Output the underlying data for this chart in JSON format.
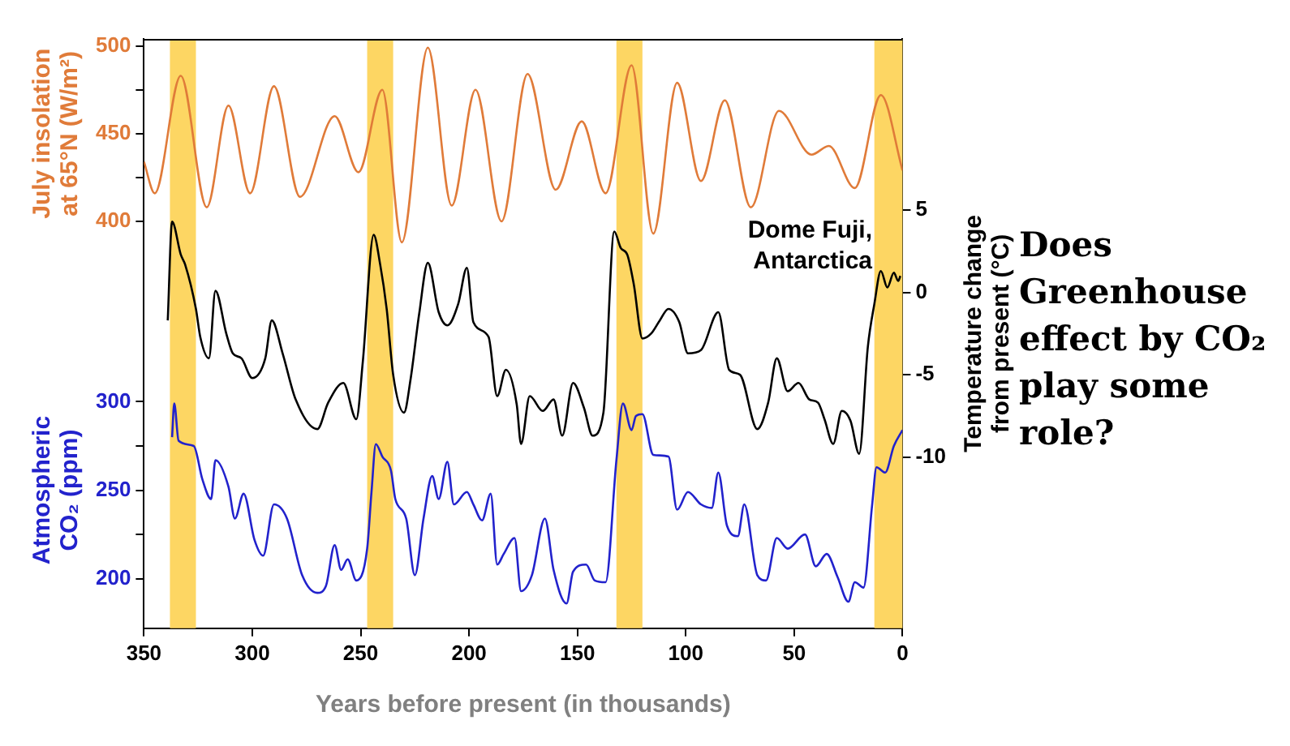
{
  "chart_data": {
    "type": "line",
    "xlabel": "Years before present (in thousands)",
    "ylabel": "July insolation at 65°N (W/m²)",
    "y2label": "Temperature change from present (°C)",
    "y3label": "Atmospheric CO₂ (ppm)",
    "xlim": [
      350,
      0
    ],
    "xticks": [
      350,
      300,
      250,
      200,
      150,
      100,
      50,
      0
    ],
    "ylim": [
      168,
      504
    ],
    "yticks": [
      400,
      {
        "value": 425,
        "label": null
      },
      450,
      {
        "value": 475,
        "label": null
      },
      500
    ],
    "y2lim": [
      -20.4,
      15.4
    ],
    "y2ticks": [
      -10,
      -5,
      0,
      5
    ],
    "y3lim": [
      172,
      505
    ],
    "y3ticks": [
      200,
      {
        "value": 225,
        "label": null
      },
      250,
      {
        "value": 275,
        "label": null
      },
      300
    ],
    "marker": "none",
    "bands": [
      {
        "axis": "x",
        "from": 338,
        "to": 326,
        "color": "#fdd663"
      },
      {
        "axis": "x",
        "from": 247,
        "to": 235,
        "color": "#fdd663"
      },
      {
        "axis": "x",
        "from": 132,
        "to": 120,
        "color": "#fdd663"
      },
      {
        "axis": "x",
        "from": 13,
        "to": 0,
        "color": "#fdd663"
      }
    ],
    "annotations": [
      "Does Greenhouse effect by CO₂ play some role?"
    ],
    "series": [
      {
        "color": "#e07b39",
        "axis": "y",
        "x": [
          350,
          345,
          333,
          321,
          311,
          301,
          290,
          278,
          262,
          251,
          240,
          231,
          219,
          208,
          197,
          185,
          173,
          160,
          148,
          137,
          125,
          115,
          104,
          93,
          82,
          70,
          57,
          42,
          34,
          22,
          10,
          0
        ],
        "values": [
          434,
          416,
          483,
          408,
          466,
          416,
          477,
          414,
          460,
          428,
          475,
          388,
          499,
          409,
          475,
          400,
          484,
          418,
          457,
          416,
          489,
          393,
          479,
          423,
          469,
          408,
          463,
          438,
          443,
          419,
          472,
          429
        ]
      },
      {
        "name": "Dome Fuji, Antarctica",
        "color": "#000000",
        "axis": "y2",
        "x": [
          339,
          337,
          333,
          331,
          326,
          324,
          320,
          317,
          312,
          309,
          305,
          300,
          294,
          291,
          286,
          280,
          270,
          265,
          258,
          252,
          249,
          244,
          241,
          238,
          235,
          230,
          227,
          223,
          219,
          214,
          210,
          205,
          201,
          198,
          191,
          187,
          183,
          178,
          176,
          172,
          166,
          161,
          157,
          152,
          147,
          143,
          138,
          133,
          130,
          127,
          124,
          120,
          116,
          112,
          108,
          103,
          99,
          93,
          85,
          80,
          75,
          67,
          62,
          58,
          53,
          48,
          43,
          39,
          36,
          32,
          28,
          24,
          20,
          16,
          13,
          10,
          7,
          4,
          2,
          1
        ],
        "values": [
          -1.7,
          4.3,
          2.3,
          1.7,
          -1,
          -2.7,
          -4,
          0.1,
          -2.5,
          -3.7,
          -4,
          -5.2,
          -4,
          -1.7,
          -3.7,
          -6.5,
          -8.3,
          -6.7,
          -5.5,
          -7.7,
          -4.2,
          3.5,
          1.7,
          -1,
          -5,
          -7.3,
          -5.3,
          -1.3,
          1.8,
          -1.2,
          -2,
          -0.7,
          1.5,
          -1.8,
          -2.7,
          -6.3,
          -4.7,
          -6.8,
          -9.2,
          -6.3,
          -7.2,
          -6.5,
          -8.7,
          -5.5,
          -7,
          -8.7,
          -7.3,
          3.7,
          2.7,
          2.3,
          0.5,
          -2.8,
          -2.5,
          -1.7,
          -1,
          -1.8,
          -3.7,
          -3.5,
          -1.2,
          -4.7,
          -5,
          -8.3,
          -6.7,
          -4,
          -6,
          -5.5,
          -6.5,
          -6.7,
          -7.7,
          -9.2,
          -7.2,
          -7.8,
          -9.8,
          -3.3,
          -0.7,
          1.3,
          0.3,
          1.2,
          0.7,
          1
        ]
      },
      {
        "color": "#2222cc",
        "axis": "y3",
        "x": [
          337,
          336,
          334,
          327,
          323,
          319,
          317,
          311,
          308,
          304,
          299,
          295,
          290,
          284,
          277,
          270,
          266,
          262,
          259,
          256,
          252,
          247,
          245,
          243,
          240,
          236,
          234,
          229,
          225,
          221,
          217,
          214,
          210,
          207,
          201,
          198,
          194,
          190,
          187,
          184,
          179,
          176,
          171,
          165,
          161,
          155,
          152,
          146,
          142,
          137,
          132,
          129,
          125,
          123,
          120,
          115,
          108,
          104,
          99,
          93,
          88,
          85,
          81,
          76,
          73,
          67,
          63,
          58,
          53,
          45,
          40,
          35,
          30,
          25,
          22,
          18,
          14,
          12,
          8,
          4,
          0
        ],
        "values": [
          280,
          299,
          278,
          275,
          256,
          245,
          267,
          252,
          234,
          248,
          222,
          213,
          242,
          234,
          202,
          192,
          196,
          219,
          205,
          211,
          199,
          217,
          249,
          276,
          269,
          261,
          245,
          234,
          202,
          234,
          258,
          245,
          266,
          242,
          249,
          242,
          233,
          248,
          208,
          214,
          223,
          193,
          202,
          234,
          205,
          186,
          204,
          208,
          199,
          198,
          267,
          299,
          284,
          292,
          293,
          270,
          269,
          239,
          249,
          242,
          240,
          260,
          230,
          224,
          242,
          202,
          199,
          223,
          217,
          225,
          207,
          214,
          201,
          187,
          198,
          195,
          242,
          263,
          260,
          275,
          284
        ]
      }
    ]
  }
}
